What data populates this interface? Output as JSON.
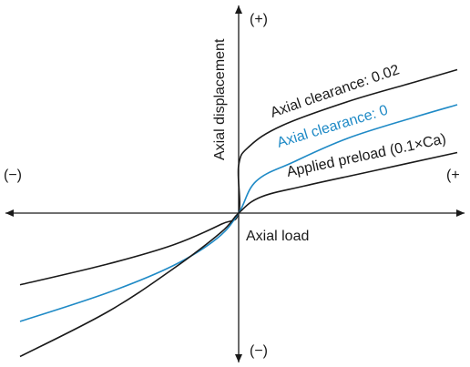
{
  "chart_data": {
    "type": "line",
    "xlabel": "Axial load",
    "ylabel": "Axial displacement",
    "x_positive_label": "(+",
    "x_negative_label": "(−)",
    "y_positive_label": "(+)",
    "y_negative_label": "(−)",
    "colors": {
      "axis": "#1a1a1a",
      "black_series": "#1a1a1a",
      "blue_series": "#1f8ac6"
    },
    "grid": false,
    "series": [
      {
        "name": "Axial clearance: 0.02",
        "color": "#1a1a1a",
        "points": [
          [
            -1.0,
            -0.45
          ],
          [
            -0.6,
            -0.32
          ],
          [
            -0.3,
            -0.2
          ],
          [
            -0.08,
            -0.07
          ],
          [
            0.0,
            -0.0
          ],
          [
            0.0,
            0.3
          ],
          [
            0.05,
            0.42
          ],
          [
            0.2,
            0.55
          ],
          [
            0.5,
            0.7
          ],
          [
            0.8,
            0.82
          ],
          [
            1.0,
            0.9
          ]
        ]
      },
      {
        "name": "Axial clearance: 0",
        "color": "#1f8ac6",
        "points": [
          [
            -1.0,
            -0.68
          ],
          [
            -0.6,
            -0.5
          ],
          [
            -0.3,
            -0.33
          ],
          [
            -0.1,
            -0.16
          ],
          [
            0.0,
            0.0
          ],
          [
            0.08,
            0.2
          ],
          [
            0.25,
            0.32
          ],
          [
            0.5,
            0.47
          ],
          [
            0.8,
            0.6
          ],
          [
            1.0,
            0.68
          ]
        ]
      },
      {
        "name": "Applied preload (0.1×Ca)",
        "color": "#1a1a1a",
        "points": [
          [
            -1.0,
            -0.9
          ],
          [
            -0.6,
            -0.62
          ],
          [
            -0.3,
            -0.35
          ],
          [
            -0.08,
            -0.12
          ],
          [
            0.0,
            0.0
          ],
          [
            0.1,
            0.1
          ],
          [
            0.3,
            0.17
          ],
          [
            0.6,
            0.26
          ],
          [
            1.0,
            0.38
          ]
        ]
      }
    ]
  }
}
